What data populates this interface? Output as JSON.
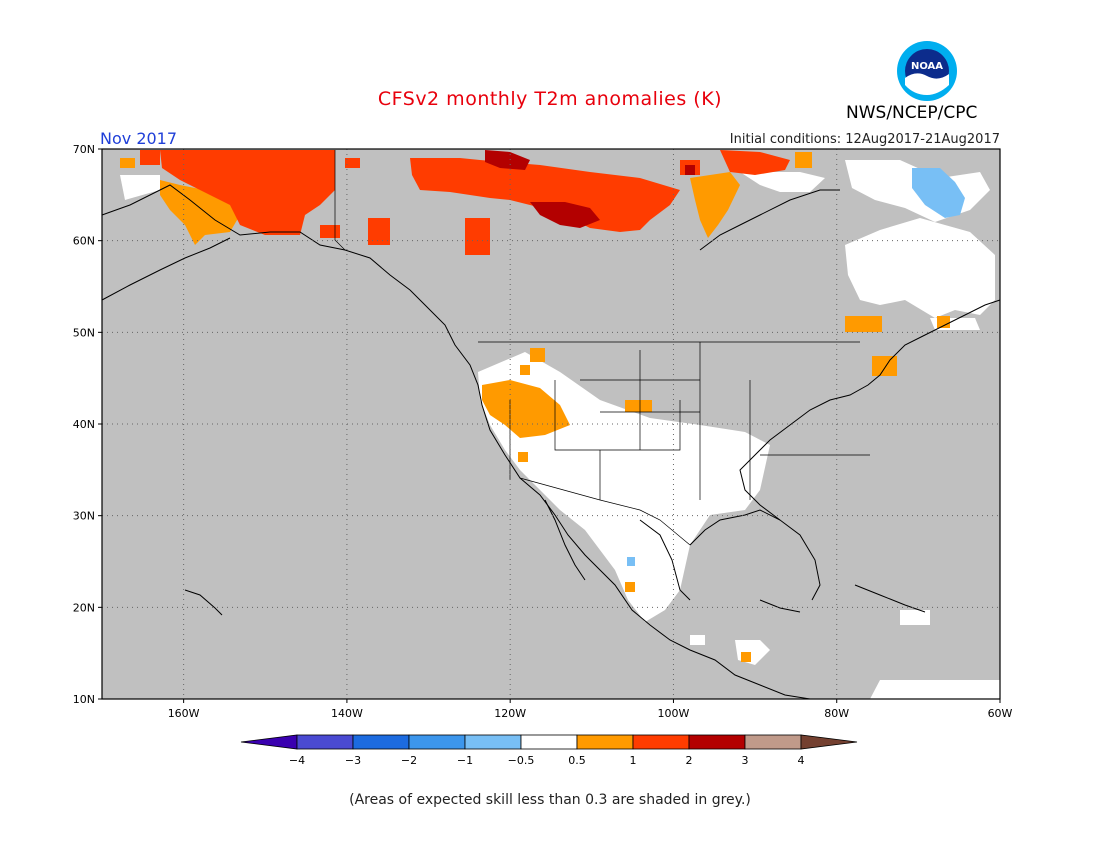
{
  "header": {
    "title": "CFSv2 monthly T2m anomalies (K)",
    "month": "Nov 2017",
    "initial_conditions": "Initial conditions: 12Aug2017-21Aug2017",
    "agency": "NWS/NCEP/CPC",
    "logo_text": "NOAA"
  },
  "colors": {
    "title": "#e8000c",
    "month": "#1f3fd8",
    "land_grey": "#c0c0c0",
    "skill_white": "#ffffff"
  },
  "map": {
    "lon_range": [
      -170,
      -60
    ],
    "lat_range": [
      10,
      70
    ],
    "lon_ticks": [
      "160W",
      "140W",
      "120W",
      "100W",
      "80W",
      "60W"
    ],
    "lat_ticks": [
      "10N",
      "20N",
      "30N",
      "40N",
      "50N",
      "60N",
      "70N"
    ],
    "grid": true
  },
  "colorbar": {
    "labels": [
      "−4",
      "−3",
      "−2",
      "−1",
      "−0.5",
      "0.5",
      "1",
      "2",
      "3",
      "4"
    ],
    "colors": [
      "#3a00b0",
      "#4a4ad2",
      "#1c6be0",
      "#3c96ec",
      "#78bff5",
      "#ffffff",
      "#ff9a00",
      "#ff3c00",
      "#b30000",
      "#c09a8a",
      "#744030"
    ]
  },
  "footnote": "(Areas of expected skill less than 0.3 are shaded in grey.)"
}
